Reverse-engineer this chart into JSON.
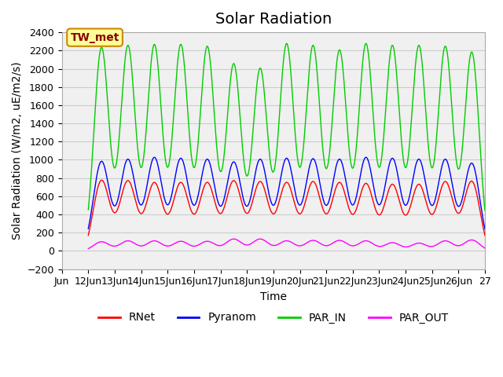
{
  "title": "Solar Radiation",
  "ylabel": "Solar Radiation (W/m2, uE/m2/s)",
  "xlabel": "Time",
  "xlim_days": [
    11.5,
    27
  ],
  "ylim": [
    -200,
    2400
  ],
  "yticks": [
    -200,
    0,
    200,
    400,
    600,
    800,
    1000,
    1200,
    1400,
    1600,
    1800,
    2000,
    2200,
    2400
  ],
  "xtick_labels": [
    "Jun",
    "12Jun",
    "13Jun",
    "14Jun",
    "15Jun",
    "16Jun",
    "17Jun",
    "18Jun",
    "19Jun",
    "20Jun",
    "21Jun",
    "22Jun",
    "23Jun",
    "24Jun",
    "25Jun",
    "26Jun",
    "27"
  ],
  "xtick_positions": [
    11,
    12,
    13,
    14,
    15,
    16,
    17,
    18,
    19,
    20,
    21,
    22,
    23,
    24,
    25,
    26,
    27
  ],
  "colors": {
    "RNet": "#ff0000",
    "Pyranom": "#0000ff",
    "PAR_IN": "#00cc00",
    "PAR_OUT": "#ff00ff"
  },
  "line_width": 1.0,
  "annotation_text": "TW_met",
  "annotation_bg": "#ffff99",
  "annotation_border": "#cc8800",
  "grid_color": "#cccccc",
  "plot_bg": "#f0f0f0",
  "title_fontsize": 14,
  "axis_fontsize": 10,
  "tick_fontsize": 9,
  "legend_fontsize": 10,
  "num_days": 15,
  "day_start": 12,
  "RNet_night": -80.0,
  "points_per_day": 288,
  "par_in_peaks": [
    2230,
    2250,
    2260,
    2260,
    2240,
    2050,
    2000,
    2270,
    2250,
    2200,
    2270,
    2250,
    2250,
    2240,
    2180
  ],
  "pyranom_peaks": [
    980,
    1000,
    1020,
    1010,
    1000,
    970,
    1000,
    1010,
    1005,
    1000,
    1020,
    1010,
    1000,
    1000,
    960
  ],
  "rnet_peaks": [
    770,
    760,
    740,
    740,
    740,
    760,
    750,
    740,
    750,
    740,
    730,
    720,
    720,
    750,
    760
  ],
  "par_out_peaks": [
    100,
    110,
    110,
    105,
    105,
    130,
    130,
    110,
    115,
    115,
    110,
    90,
    85,
    110,
    120
  ]
}
